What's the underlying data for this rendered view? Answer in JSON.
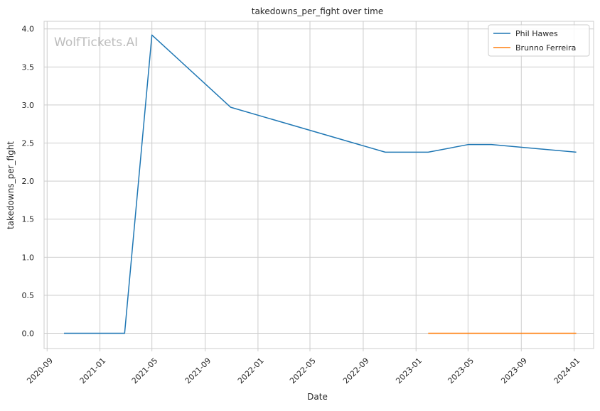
{
  "chart_data": {
    "type": "line",
    "title": "takedowns_per_fight over time",
    "xlabel": "Date",
    "ylabel": "takedowns_per_fight",
    "watermark": "WolfTickets.AI",
    "grid": true,
    "legend_position": "top-right",
    "xlim": [
      "2020-08-25",
      "2024-02-15"
    ],
    "ylim": [
      -0.2,
      4.1
    ],
    "x_ticks": [
      "2020-09",
      "2021-01",
      "2021-05",
      "2021-09",
      "2022-01",
      "2022-05",
      "2022-09",
      "2023-01",
      "2023-05",
      "2023-09",
      "2024-01"
    ],
    "x_tick_labels": [
      "2020-09",
      "2021-01",
      "2021-05",
      "2021-09",
      "2022-01",
      "2022-05",
      "2022-09",
      "2023-01",
      "2023-05",
      "2023-09",
      "2024-01"
    ],
    "y_ticks": [
      0.0,
      0.5,
      1.0,
      1.5,
      2.0,
      2.5,
      3.0,
      3.5,
      4.0
    ],
    "y_tick_labels": [
      "0.0",
      "0.5",
      "1.0",
      "1.5",
      "2.0",
      "2.5",
      "3.0",
      "3.5",
      "4.0"
    ],
    "series": [
      {
        "name": "Phil Hawes",
        "color": "#1f77b4",
        "x": [
          "2020-10-10",
          "2021-02-27",
          "2021-05-01",
          "2021-10-30",
          "2022-10-22",
          "2023-01-29",
          "2023-05-01",
          "2023-06-24",
          "2024-01-06"
        ],
        "y": [
          0.0,
          0.0,
          3.92,
          2.97,
          2.38,
          2.38,
          2.48,
          2.48,
          2.38
        ]
      },
      {
        "name": "Brunno Ferreira",
        "color": "#ff7f0e",
        "x": [
          "2023-01-29",
          "2024-01-06"
        ],
        "y": [
          0.0,
          0.0
        ]
      }
    ]
  }
}
